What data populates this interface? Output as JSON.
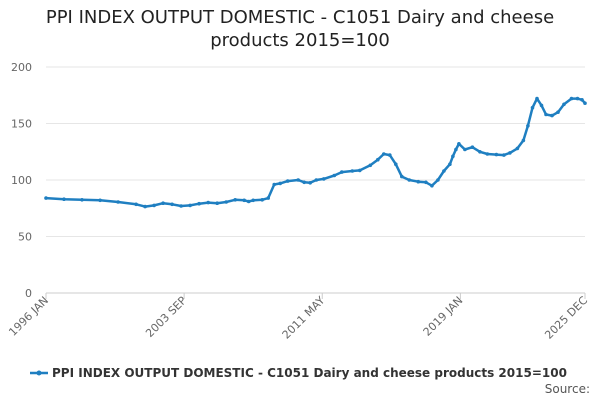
{
  "chart_data": {
    "type": "line",
    "title_line1": "PPI INDEX OUTPUT DOMESTIC - C1051 Dairy and cheese",
    "title_line2": "products 2015=100",
    "ylim": [
      0,
      200
    ],
    "y_ticks": [
      0,
      50,
      100,
      150,
      200
    ],
    "y_tick_labels": [
      "0",
      "50",
      "100",
      "150",
      "200"
    ],
    "x_range": [
      "1996-01",
      "2025-12"
    ],
    "x_ticks": [
      {
        "date": "1996-01",
        "label": "1996 JAN"
      },
      {
        "date": "2003-09",
        "label": "2003 SEP"
      },
      {
        "date": "2011-05",
        "label": "2011 MAY"
      },
      {
        "date": "2019-01",
        "label": "2019 JAN"
      },
      {
        "date": "2025-12",
        "label": "2025 DEC"
      }
    ],
    "grid": "horizontal",
    "legend_position": "bottom",
    "source_label": "Source:",
    "colors": {
      "series": "#1f7fc1",
      "grid": "#e6e6e6",
      "axis": "#cccccc"
    },
    "series": [
      {
        "name": "PPI INDEX OUTPUT DOMESTIC - C1051 Dairy and cheese products 2015=100",
        "points": [
          [
            "1996-01",
            84
          ],
          [
            "1997-01",
            83
          ],
          [
            "1998-01",
            82.5
          ],
          [
            "1999-01",
            82
          ],
          [
            "2000-01",
            80.5
          ],
          [
            "2001-01",
            78.5
          ],
          [
            "2001-07",
            76.5
          ],
          [
            "2002-01",
            77.5
          ],
          [
            "2002-07",
            79.5
          ],
          [
            "2003-01",
            78.5
          ],
          [
            "2003-07",
            77
          ],
          [
            "2004-01",
            77.5
          ],
          [
            "2004-07",
            79
          ],
          [
            "2005-01",
            80
          ],
          [
            "2005-07",
            79.5
          ],
          [
            "2006-01",
            80.5
          ],
          [
            "2006-07",
            82.5
          ],
          [
            "2007-01",
            82
          ],
          [
            "2007-04",
            81
          ],
          [
            "2007-07",
            82
          ],
          [
            "2008-01",
            82.5
          ],
          [
            "2008-05",
            84
          ],
          [
            "2008-09",
            96
          ],
          [
            "2009-01",
            97
          ],
          [
            "2009-06",
            99
          ],
          [
            "2010-01",
            100
          ],
          [
            "2010-05",
            98
          ],
          [
            "2010-09",
            97.5
          ],
          [
            "2011-01",
            100
          ],
          [
            "2011-06",
            101
          ],
          [
            "2012-01",
            104
          ],
          [
            "2012-06",
            107
          ],
          [
            "2013-01",
            108
          ],
          [
            "2013-06",
            108.5
          ],
          [
            "2014-01",
            113
          ],
          [
            "2014-06",
            118
          ],
          [
            "2014-10",
            123
          ],
          [
            "2015-02",
            122
          ],
          [
            "2015-06",
            114
          ],
          [
            "2015-10",
            103
          ],
          [
            "2016-03",
            100
          ],
          [
            "2016-09",
            98.5
          ],
          [
            "2017-02",
            98
          ],
          [
            "2017-06",
            95
          ],
          [
            "2017-10",
            100
          ],
          [
            "2018-02",
            108
          ],
          [
            "2018-06",
            114
          ],
          [
            "2018-08",
            121
          ],
          [
            "2018-10",
            127
          ],
          [
            "2018-12",
            132
          ],
          [
            "2019-04",
            127
          ],
          [
            "2019-09",
            129
          ],
          [
            "2020-02",
            125
          ],
          [
            "2020-07",
            123
          ],
          [
            "2021-01",
            122.5
          ],
          [
            "2021-06",
            122
          ],
          [
            "2021-10",
            124
          ],
          [
            "2022-03",
            128
          ],
          [
            "2022-07",
            135
          ],
          [
            "2022-10",
            148
          ],
          [
            "2023-01",
            164
          ],
          [
            "2023-04",
            172
          ],
          [
            "2023-07",
            166
          ],
          [
            "2023-10",
            158
          ],
          [
            "2024-02",
            157
          ],
          [
            "2024-06",
            160
          ],
          [
            "2024-10",
            167
          ],
          [
            "2025-03",
            172
          ],
          [
            "2025-07",
            172
          ],
          [
            "2025-10",
            171
          ],
          [
            "2025-12",
            168
          ]
        ]
      }
    ]
  }
}
